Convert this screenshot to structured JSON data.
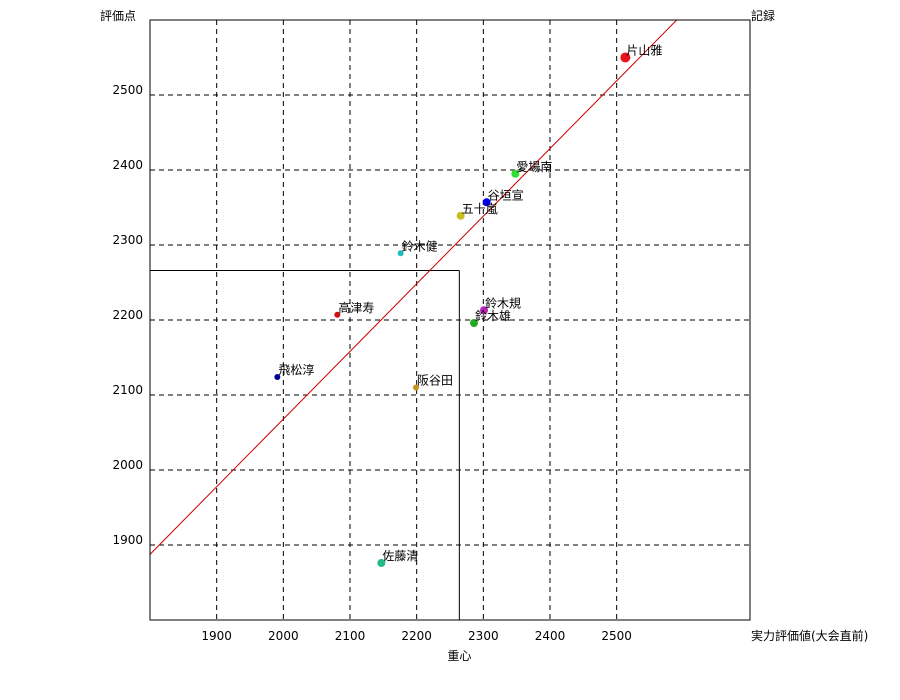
{
  "chart_data": {
    "type": "scatter",
    "ylabel": "評価点",
    "xlabel": "実力評価値(大会直前)",
    "top_right_label": "記録",
    "center_label": "重心",
    "xlim": [
      1800,
      2700
    ],
    "ylim": [
      1800,
      2600
    ],
    "x_ticks": [
      1900,
      2000,
      2100,
      2200,
      2300,
      2400,
      2500
    ],
    "y_ticks": [
      1900,
      2000,
      2100,
      2200,
      2300,
      2400,
      2500
    ],
    "grid": true,
    "center": {
      "x": 2264,
      "y": 2266
    },
    "trend_line": [
      {
        "x": 1703,
        "y": 1800
      },
      {
        "x": 2590,
        "y": 2600
      }
    ],
    "points": [
      {
        "name": "片山雅",
        "x": 2513,
        "y": 2550,
        "color": "#e8141b",
        "size": 5
      },
      {
        "name": "愛場南",
        "x": 2348,
        "y": 2395,
        "color": "#33dd33",
        "size": 4
      },
      {
        "name": "谷垣宣",
        "x": 2305,
        "y": 2357,
        "color": "#0000ee",
        "size": 4
      },
      {
        "name": "五十嵐",
        "x": 2266,
        "y": 2339,
        "color": "#c8c020",
        "size": 4
      },
      {
        "name": "鈴木健",
        "x": 2176,
        "y": 2289,
        "color": "#22bbbb",
        "size": 3
      },
      {
        "name": "高津寿",
        "x": 2081,
        "y": 2207,
        "color": "#cc1111",
        "size": 3
      },
      {
        "name": "鈴木規",
        "x": 2301,
        "y": 2213,
        "color": "#bb22bb",
        "size": 4
      },
      {
        "name": "鈴木雄",
        "x": 2286,
        "y": 2196,
        "color": "#22aa22",
        "size": 4
      },
      {
        "name": "飛松淳",
        "x": 1991,
        "y": 2124,
        "color": "#000099",
        "size": 3
      },
      {
        "name": "阪谷田",
        "x": 2199,
        "y": 2110,
        "color": "#c8951a",
        "size": 3
      },
      {
        "name": "佐藤清",
        "x": 2147,
        "y": 1876,
        "color": "#22bb88",
        "size": 4
      }
    ]
  }
}
